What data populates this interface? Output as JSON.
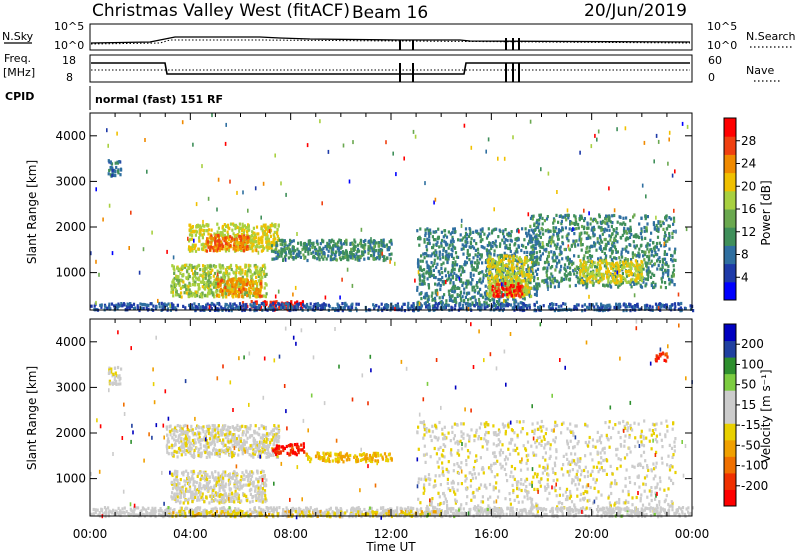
{
  "header": {
    "station": "Christmas Valley West (fitACF)",
    "beam": "Beam 16",
    "date": "20/Jun/2019"
  },
  "strip_labels": {
    "nsky": "N.Sky",
    "nsearch": "N.Search",
    "freq_top": "Freq.",
    "freq_unit": "[MHz]",
    "nave": "Nave",
    "cpid": "CPID",
    "cpid_value": "normal (fast) 151 RF",
    "noise_ticks": [
      "10^5",
      "10^0"
    ],
    "freq_ticks": [
      "18",
      "8"
    ],
    "nave_ticks": [
      "60",
      "0"
    ]
  },
  "colors": {
    "power_scale": [
      "#0000ff",
      "#1e3aa8",
      "#2f6fa0",
      "#3f8f5a",
      "#6aa84f",
      "#a8d040",
      "#f0c000",
      "#f08a00",
      "#f04010",
      "#ff0000"
    ],
    "velocity_scale": [
      "#ff0000",
      "#f03000",
      "#f07000",
      "#f0a000",
      "#e8d000",
      "#cccccc",
      "#cccccc",
      "#7ccc40",
      "#2e8f2e",
      "#2040a0",
      "#0000c0"
    ]
  },
  "chart_data": [
    {
      "type": "heatmap",
      "panel": "power",
      "ylabel": "Slant Range [km]",
      "xlabel": "",
      "xlim": [
        "00:00",
        "24:00"
      ],
      "ylim": [
        180,
        4500
      ],
      "yticks": [
        1000,
        2000,
        3000,
        4000
      ],
      "colorbar_label": "Power [dB]",
      "colorbar_ticks": [
        4,
        8,
        12,
        16,
        20,
        24,
        28
      ],
      "colorbar_range": [
        0,
        30
      ],
      "grid": false,
      "regions": [
        {
          "t0": 3.9,
          "t1": 7.5,
          "r0": 1500,
          "r1": 2100,
          "value": 18
        },
        {
          "t0": 4.6,
          "t1": 6.3,
          "r0": 1500,
          "r1": 1850,
          "value": 24
        },
        {
          "t0": 7.2,
          "t1": 12.0,
          "r0": 1300,
          "r1": 1750,
          "value": 10
        },
        {
          "t0": 3.2,
          "t1": 7.0,
          "r0": 500,
          "r1": 1200,
          "value": 16
        },
        {
          "t0": 5.0,
          "t1": 6.8,
          "r0": 500,
          "r1": 900,
          "value": 22
        },
        {
          "t0": 0.7,
          "t1": 1.2,
          "r0": 3100,
          "r1": 3500,
          "value": 8
        },
        {
          "t0": 13.0,
          "t1": 17.8,
          "r0": 300,
          "r1": 2000,
          "value": 9
        },
        {
          "t0": 15.8,
          "t1": 17.6,
          "r0": 500,
          "r1": 1400,
          "value": 18
        },
        {
          "t0": 16.0,
          "t1": 17.2,
          "r0": 500,
          "r1": 800,
          "value": 28
        },
        {
          "t0": 17.5,
          "t1": 23.3,
          "r0": 700,
          "r1": 2300,
          "value": 10
        },
        {
          "t0": 19.5,
          "t1": 22.0,
          "r0": 800,
          "r1": 1300,
          "value": 18
        },
        {
          "t0": 6.0,
          "t1": 8.5,
          "r0": 200,
          "r1": 400,
          "value": 28
        },
        {
          "t0": 0.0,
          "t1": 24.0,
          "r0": 200,
          "r1": 360,
          "value": 6
        }
      ]
    },
    {
      "type": "heatmap",
      "panel": "velocity",
      "ylabel": "Slant Range [km]",
      "xlabel": "Time UT",
      "xlim": [
        "00:00",
        "24:00"
      ],
      "ylim": [
        180,
        4500
      ],
      "yticks": [
        1000,
        2000,
        3000,
        4000
      ],
      "xticks": [
        "00:00",
        "04:00",
        "08:00",
        "12:00",
        "16:00",
        "20:00",
        "00:00"
      ],
      "colorbar_label": "Velocity [m s⁻¹]",
      "colorbar_ticks": [
        -200,
        -100,
        -50,
        -15,
        15,
        50,
        100,
        200
      ],
      "colorbar_range": [
        -250,
        250
      ],
      "grid": false,
      "regions": [
        {
          "t0": 3.0,
          "t1": 7.5,
          "r0": 1500,
          "r1": 2200,
          "value": 0
        },
        {
          "t0": 3.2,
          "t1": 7.0,
          "r0": 500,
          "r1": 1200,
          "value": 0
        },
        {
          "t0": 7.2,
          "t1": 8.5,
          "r0": 1550,
          "r1": 1800,
          "value": -200
        },
        {
          "t0": 8.5,
          "t1": 12.0,
          "r0": 1400,
          "r1": 1600,
          "value": -70
        },
        {
          "t0": 0.7,
          "t1": 1.2,
          "r0": 3100,
          "r1": 3500,
          "value": 0
        },
        {
          "t0": 13.0,
          "t1": 23.3,
          "r0": 300,
          "r1": 2300,
          "value": 0
        },
        {
          "t0": 0.0,
          "t1": 24.0,
          "r0": 200,
          "r1": 400,
          "value": 25
        },
        {
          "t0": 3.0,
          "t1": 14.0,
          "r0": 200,
          "r1": 320,
          "value": -40
        },
        {
          "t0": 22.5,
          "t1": 23.0,
          "r0": 3600,
          "r1": 3800,
          "value": -200
        }
      ]
    }
  ]
}
